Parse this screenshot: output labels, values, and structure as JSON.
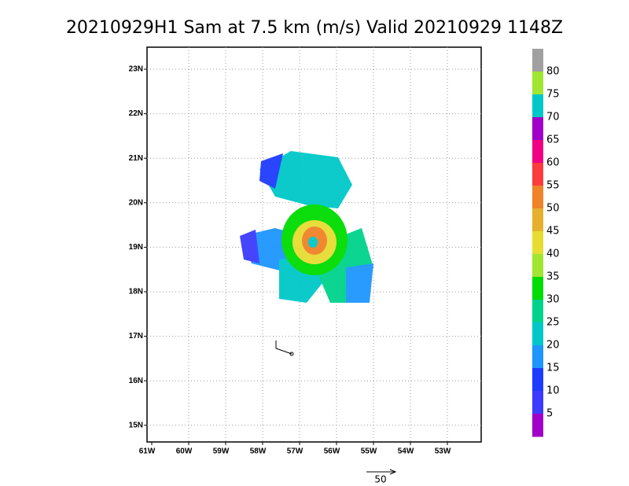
{
  "title": "20210929H1 Sam at 7.5 km (m/s) Valid 20210929 1148Z",
  "lon_labels": [
    "61W",
    "60W",
    "59W",
    "58W",
    "57W",
    "56W",
    "55W",
    "54W",
    "53W"
  ],
  "lat_labels": [
    "23N",
    "22N",
    "21N",
    "20N",
    "19N",
    "18N",
    "17N",
    "16N",
    "15N"
  ],
  "colorbar": {
    "labels": [
      80,
      75,
      70,
      65,
      60,
      55,
      50,
      45,
      40,
      35,
      30,
      25,
      20,
      15,
      10,
      5
    ],
    "colors": [
      "#a0a0a0",
      "#a0e632",
      "#00c8c8",
      "#a000c8",
      "#f00082",
      "#fa3c3c",
      "#f08228",
      "#e6af2d",
      "#e6dc32",
      "#a0e632",
      "#00dc00",
      "#00d28c",
      "#00c8c8",
      "#1e96ff",
      "#1e3cff",
      "#3c3cff",
      "#a000c8"
    ]
  },
  "vector_reference": "50"
}
